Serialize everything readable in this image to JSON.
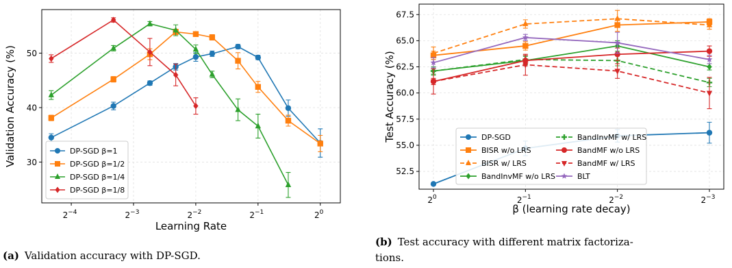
{
  "chart_data": [
    {
      "type": "line",
      "caption_label": "(a)",
      "caption_text": "Validation accuracy with DP-SGD.",
      "xlabel": "Learning Rate",
      "ylabel": "Validation Accuracy (%)",
      "x_scale": "log2",
      "xlim": [
        0.045,
        1.25
      ],
      "ylim": [
        22.5,
        58
      ],
      "x_ticks": [
        {
          "value": 0.0625,
          "base": "2",
          "exp": "−4"
        },
        {
          "value": 0.125,
          "base": "2",
          "exp": "−3"
        },
        {
          "value": 0.25,
          "base": "2",
          "exp": "−2"
        },
        {
          "value": 0.5,
          "base": "2",
          "exp": "−1"
        },
        {
          "value": 1,
          "base": "2",
          "exp": "0"
        }
      ],
      "y_ticks": [
        30,
        40,
        50
      ],
      "grid": true,
      "legend": "lower-left",
      "series": [
        {
          "name": "DP-SGD β=1",
          "color": "#1f77b4",
          "marker": "circle",
          "x": [
            0.05,
            0.1,
            0.15,
            0.2,
            0.25,
            0.3,
            0.4,
            0.5,
            0.7,
            1.0
          ],
          "y": [
            34.5,
            40.3,
            44.5,
            47.5,
            49.3,
            49.9,
            51.2,
            49.2,
            39.9,
            33.5
          ],
          "err": [
            0.7,
            0.7,
            0.4,
            0.6,
            0.8,
            0.5,
            0.4,
            0.4,
            1.5,
            2.6
          ]
        },
        {
          "name": "DP-SGD β=1/2",
          "color": "#ff7f0e",
          "marker": "square",
          "x": [
            0.05,
            0.1,
            0.15,
            0.2,
            0.25,
            0.3,
            0.4,
            0.5,
            0.7,
            1.0
          ],
          "y": [
            38.1,
            45.2,
            49.8,
            53.9,
            53.5,
            52.9,
            48.6,
            43.8,
            37.6,
            33.4
          ],
          "err": [
            0.5,
            0.5,
            1.0,
            0.5,
            0.4,
            0.5,
            1.5,
            1.0,
            1.0,
            1.5
          ]
        },
        {
          "name": "DP-SGD β=1/4",
          "color": "#2ca02c",
          "marker": "triangle",
          "x": [
            0.05,
            0.1,
            0.15,
            0.2,
            0.25,
            0.3,
            0.4,
            0.5,
            0.7
          ],
          "y": [
            42.3,
            50.9,
            55.4,
            54.2,
            50.7,
            46.1,
            39.6,
            36.6,
            25.8
          ],
          "err": [
            0.8,
            0.5,
            0.4,
            1.0,
            0.8,
            0.6,
            2.0,
            2.2,
            2.3
          ]
        },
        {
          "name": "DP-SGD β=1/8",
          "color": "#d62728",
          "marker": "diamond",
          "x": [
            0.05,
            0.1,
            0.15,
            0.2,
            0.25
          ],
          "y": [
            49.0,
            56.1,
            50.2,
            46.0,
            40.3
          ],
          "err": [
            0.7,
            0.4,
            2.5,
            2.0,
            1.5
          ]
        }
      ]
    },
    {
      "type": "line",
      "caption_label": "(b)",
      "caption_lines": [
        "Test accuracy with different matrix factoriza-",
        "tions."
      ],
      "xlabel": "β  (learning rate decay)",
      "ylabel": "Test Accuracy (%)",
      "x_categories": [
        {
          "base": "2",
          "exp": "0"
        },
        {
          "base": "2",
          "exp": "−1"
        },
        {
          "base": "2",
          "exp": "−2"
        },
        {
          "base": "2",
          "exp": "−3"
        }
      ],
      "ylim": [
        50.8,
        68.5
      ],
      "y_ticks": [
        "52.5",
        "55.0",
        "57.5",
        "60.0",
        "62.5",
        "65.0",
        "67.5"
      ],
      "grid": true,
      "legend": "lower-center",
      "series": [
        {
          "name": "DP-SGD",
          "color": "#1f77b4",
          "marker": "circle",
          "dash": false,
          "y": [
            51.3,
            54.7,
            55.9,
            56.2
          ],
          "err": [
            0.1,
            0.7,
            0.6,
            1.0
          ]
        },
        {
          "name": "BISR w/o LRS",
          "color": "#ff7f0e",
          "marker": "square",
          "dash": false,
          "y": [
            63.6,
            64.5,
            66.5,
            66.8
          ],
          "err": [
            0.4,
            0.4,
            0.6,
            0.3
          ]
        },
        {
          "name": "BISR w/ LRS",
          "color": "#ff7f0e",
          "marker": "triangle-up",
          "dash": true,
          "y": [
            63.8,
            66.6,
            67.1,
            66.5
          ],
          "err": [
            0.6,
            0.4,
            0.8,
            0.4
          ]
        },
        {
          "name": "BandInvMF w/o LRS",
          "color": "#2ca02c",
          "marker": "diamond",
          "dash": false,
          "y": [
            62.1,
            63.1,
            64.5,
            62.5
          ],
          "err": [
            0.3,
            0.4,
            0.5,
            0.3
          ]
        },
        {
          "name": "BandInvMF w/ LRS",
          "color": "#2ca02c",
          "marker": "plus",
          "dash": true,
          "y": [
            62.1,
            63.2,
            63.1,
            61.0
          ],
          "err": [
            0.4,
            0.4,
            0.5,
            0.4
          ]
        },
        {
          "name": "BandMF w/o LRS",
          "color": "#d62728",
          "marker": "circle",
          "dash": false,
          "y": [
            61.1,
            63.1,
            63.7,
            64.0
          ],
          "err": [
            0.3,
            0.5,
            0.6,
            0.5
          ]
        },
        {
          "name": "BandMF w/ LRS",
          "color": "#d62728",
          "marker": "triangle-down",
          "dash": true,
          "y": [
            61.1,
            62.7,
            62.1,
            60.0
          ],
          "err": [
            1.2,
            1.0,
            0.7,
            1.5
          ]
        },
        {
          "name": "BLT",
          "color": "#9467bd",
          "marker": "star",
          "dash": false,
          "y": [
            62.9,
            65.3,
            64.8,
            63.2
          ],
          "err": [
            0.5,
            0.3,
            1.0,
            0.4
          ]
        }
      ]
    }
  ]
}
